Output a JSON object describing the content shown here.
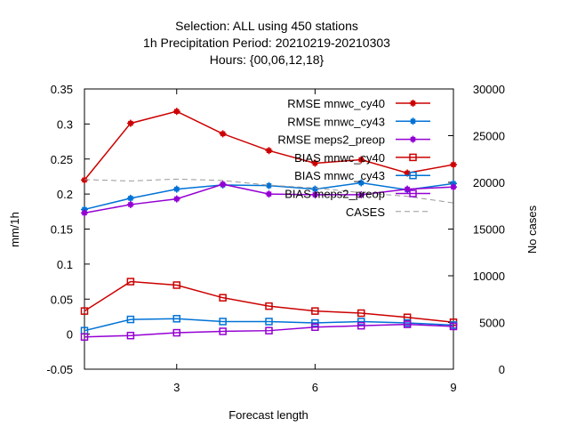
{
  "chart_data": {
    "type": "line",
    "title_lines": [
      "Selection: ALL using   450 stations",
      "1h Precipitation    Period: 20210219-20210303",
      "Hours: {00,06,12,18}"
    ],
    "xlabel": "Forecast length",
    "ylabel_left": "mm/1h",
    "ylabel_right": "No cases",
    "x": [
      1,
      2,
      3,
      4,
      5,
      6,
      7,
      8,
      9
    ],
    "xlim": [
      1,
      9
    ],
    "ylim_left": [
      -0.05,
      0.35
    ],
    "ylim_right": [
      0,
      30000
    ],
    "x_ticks": [
      3,
      6,
      9
    ],
    "x_tick_labels": [
      "3",
      "6",
      "9"
    ],
    "y_left_ticks": [
      -0.05,
      0,
      0.05,
      0.1,
      0.15,
      0.2,
      0.25,
      0.3,
      0.35
    ],
    "y_left_tick_labels": [
      "-0.05",
      "0",
      "0.05",
      "0.1",
      "0.15",
      "0.2",
      "0.25",
      "0.3",
      "0.35"
    ],
    "y_right_ticks": [
      0,
      5000,
      10000,
      15000,
      20000,
      25000,
      30000
    ],
    "y_right_tick_labels": [
      "0",
      "5000",
      "10000",
      "15000",
      "20000",
      "25000",
      "30000"
    ],
    "grid": false,
    "legend_position": "top-right",
    "series": [
      {
        "name": "RMSE mnwc_cy40",
        "axis": "left",
        "color": "#cc0000",
        "marker": "filled-square",
        "dash": false,
        "values": [
          0.22,
          0.301,
          0.318,
          0.286,
          0.262,
          0.244,
          0.249,
          0.23,
          0.242
        ]
      },
      {
        "name": "RMSE mnwc_cy43",
        "axis": "left",
        "color": "#0072d6",
        "marker": "filled-square",
        "dash": false,
        "values": [
          0.178,
          0.194,
          0.207,
          0.213,
          0.212,
          0.207,
          0.216,
          0.206,
          0.215
        ]
      },
      {
        "name": "RMSE meps2_preop",
        "axis": "left",
        "color": "#9400d3",
        "marker": "filled-square",
        "dash": false,
        "values": [
          0.173,
          0.185,
          0.193,
          0.214,
          0.2,
          0.199,
          0.199,
          0.207,
          0.21
        ]
      },
      {
        "name": "BIAS mnwc_cy40",
        "axis": "left",
        "color": "#cc0000",
        "marker": "open-square",
        "dash": false,
        "values": [
          0.033,
          0.075,
          0.07,
          0.052,
          0.04,
          0.033,
          0.03,
          0.024,
          0.017
        ]
      },
      {
        "name": "BIAS mnwc_cy43",
        "axis": "left",
        "color": "#0072d6",
        "marker": "open-square",
        "dash": false,
        "values": [
          0.005,
          0.021,
          0.022,
          0.018,
          0.018,
          0.016,
          0.018,
          0.016,
          0.013
        ]
      },
      {
        "name": "BIAS meps2_preop",
        "axis": "left",
        "color": "#9400d3",
        "marker": "open-square",
        "dash": false,
        "values": [
          -0.004,
          -0.002,
          0.002,
          0.004,
          0.005,
          0.01,
          0.012,
          0.014,
          0.011
        ]
      },
      {
        "name": "CASES",
        "axis": "right",
        "color": "#999999",
        "marker": "none",
        "dash": true,
        "values": [
          20300,
          20150,
          20350,
          20200,
          19700,
          19400,
          18900,
          18500,
          17800
        ]
      }
    ]
  }
}
